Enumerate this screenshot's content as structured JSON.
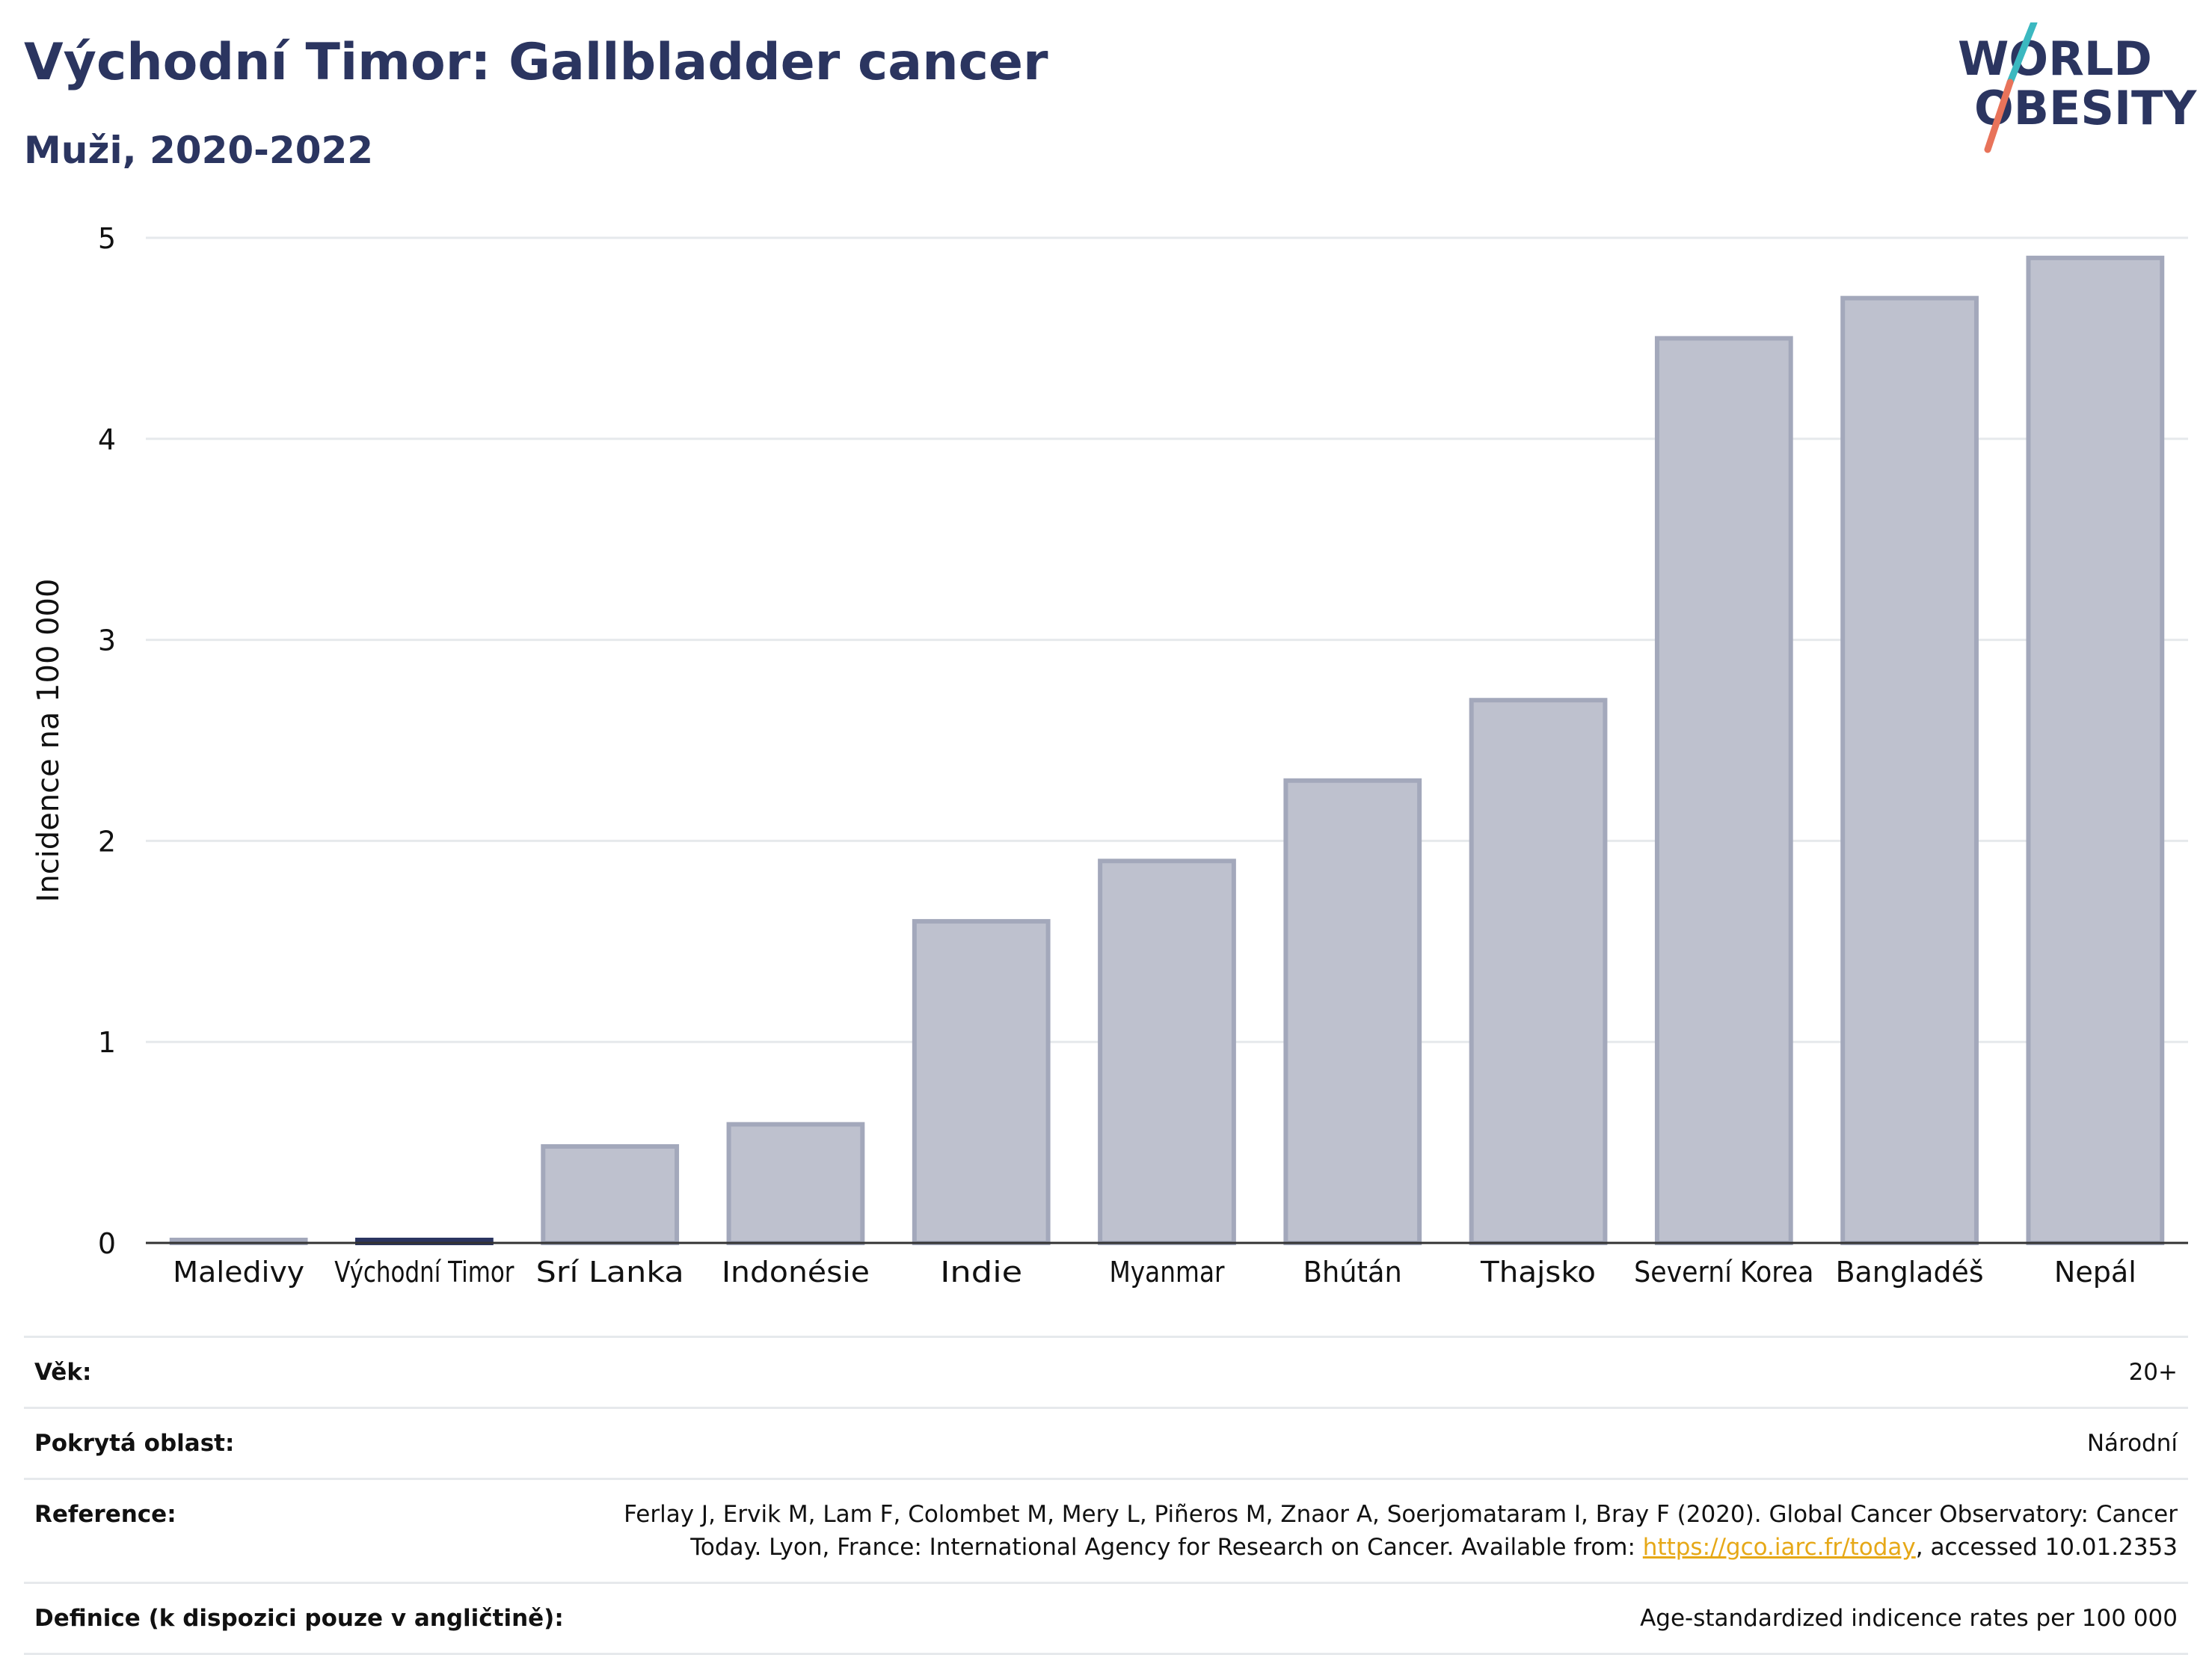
{
  "header": {
    "title": "Východní Timor: Gallbladder cancer",
    "subtitle": "Muži, 2020-2022"
  },
  "logo": {
    "line1": "WORLD",
    "line2": "OBESITY",
    "colors": {
      "text": "#2b3560",
      "slash_top": "#3bb8c0",
      "slash_bottom": "#e8735a"
    }
  },
  "colors": {
    "bar_fill": "#bec1ce",
    "bar_stroke": "#a3a8bb",
    "highlight": "#2b3560",
    "grid": "#e6e9ec",
    "axis": "#333333"
  },
  "chart_data": {
    "type": "bar",
    "title": "Východní Timor: Gallbladder cancer",
    "subtitle": "Muži, 2020-2022",
    "xlabel": "",
    "ylabel": "Incidence na 100 000",
    "categories": [
      "Maledivy",
      "Východní Timor",
      "Srí Lanka",
      "Indonésie",
      "Indie",
      "Myanmar",
      "Bhútán",
      "Thajsko",
      "Severní Korea",
      "Bangladéš",
      "Nepál"
    ],
    "values": [
      0,
      0,
      0.48,
      0.59,
      1.6,
      1.9,
      2.3,
      2.7,
      4.5,
      4.7,
      4.9
    ],
    "highlight": "Východní Timor",
    "ylim": [
      0,
      5
    ],
    "yticks": [
      0,
      1,
      2,
      3,
      4,
      5
    ],
    "grid": true
  },
  "info": {
    "rows": [
      {
        "label": "Věk:",
        "value": "20+"
      },
      {
        "label": "Pokrytá oblast:",
        "value": "Národní"
      },
      {
        "label": "Reference:",
        "value_before": "Ferlay J, Ervik M, Lam F, Colombet M, Mery L, Piñeros M, Znaor A, Soerjomataram I, Bray F (2020). Global Cancer Observatory: Cancer Today. Lyon, France: International Agency for Research on Cancer. Available from: ",
        "link": "https://gco.iarc.fr/today",
        "value_after": ", accessed 10.01.2353"
      },
      {
        "label": "Definice (k dispozici pouze v angličtině):",
        "value": "Age-standardized indicence rates per 100 000"
      }
    ]
  }
}
